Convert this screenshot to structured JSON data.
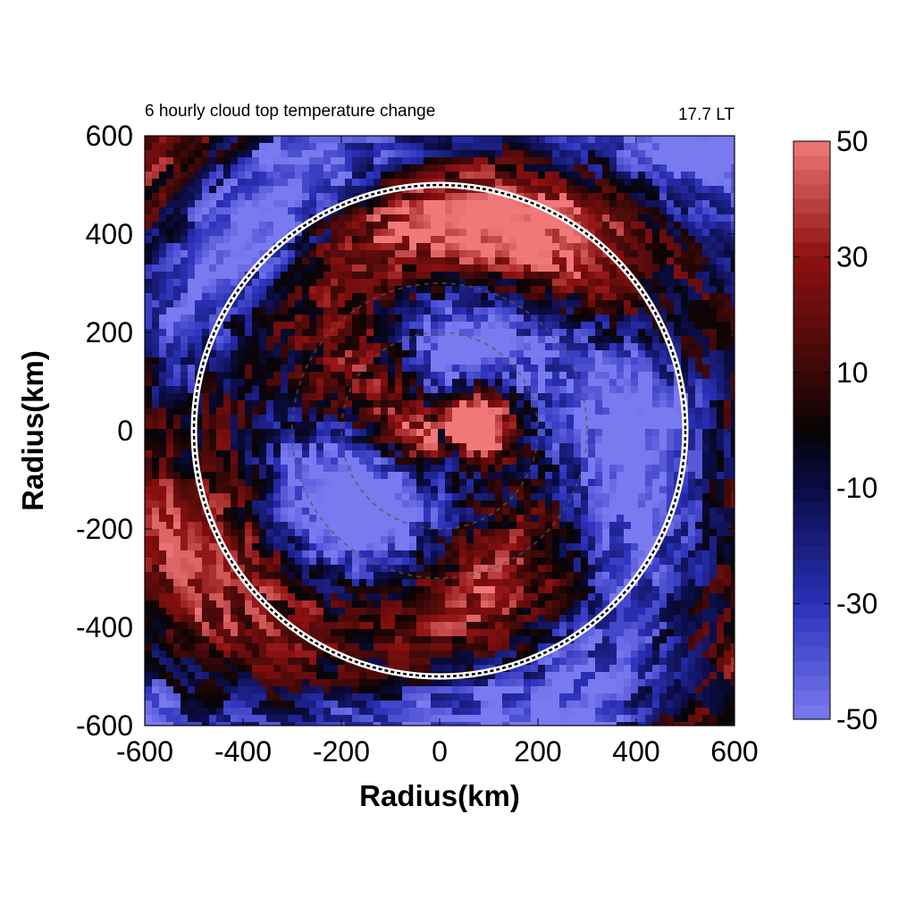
{
  "chart_data": {
    "type": "heatmap",
    "title": "6 hourly cloud top temperature change",
    "time_label": "17.7 LT",
    "xlabel": "Radius(km)",
    "ylabel": "Radius(km)",
    "xlim": [
      -600,
      600
    ],
    "ylim": [
      -600,
      600
    ],
    "x_ticks": [
      -600,
      -400,
      -200,
      0,
      200,
      400,
      600
    ],
    "y_ticks": [
      -600,
      -400,
      -200,
      0,
      200,
      400,
      600
    ],
    "grid": false,
    "domain_radius_km": 600,
    "reference_circle_radius_km": 500,
    "inner_dashed_rings_km": [
      300,
      200
    ],
    "colorbar": {
      "min": -50,
      "max": 50,
      "ticks": [
        50,
        30,
        10,
        -10,
        -30,
        -50
      ],
      "levels": 40,
      "colors": {
        "-50": "#7a7af0",
        "-30": "#2a30b8",
        "-10": "#0a0c44",
        "0": "#070303",
        "10": "#3c0808",
        "30": "#8e1010",
        "50": "#f07878"
      },
      "placement": "right"
    },
    "pattern_description_values": {
      "center_warming_peak": 45,
      "inner_ring_cooling": -40,
      "outer_band_warming": 40,
      "background_cooling": -15
    }
  }
}
